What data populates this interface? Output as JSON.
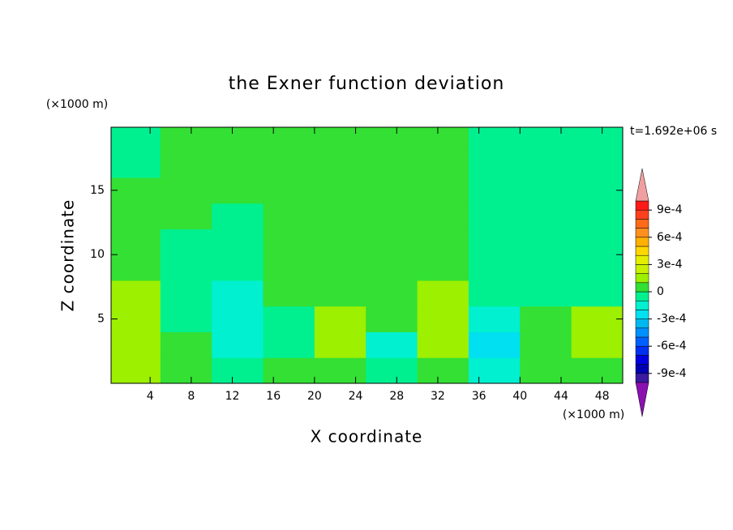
{
  "chart_data": {
    "type": "contour",
    "title": "the Exner function deviation",
    "y_unit": "(×1000 m)",
    "x_unit": "(×1000 m)",
    "time_label": "t=1.692e+06 s",
    "xlabel": "X coordinate",
    "ylabel": "Z coordinate",
    "xlim": [
      0.2,
      50
    ],
    "ylim": [
      0,
      19.9
    ],
    "xticks": [
      4,
      8,
      12,
      16,
      20,
      24,
      28,
      32,
      36,
      40,
      44,
      48
    ],
    "yticks": [
      5,
      10,
      15
    ],
    "x": [
      2.5,
      7.5,
      12.5,
      17.5,
      22.5,
      27.5,
      32.5,
      37.5,
      42.5,
      47.5
    ],
    "z": [
      1,
      3,
      5,
      7,
      9,
      11,
      13,
      15,
      17,
      19
    ],
    "values": [
      [
        0.00015,
        5e-05,
        -5e-05,
        5e-05,
        5e-05,
        -5e-05,
        5e-05,
        -0.00015,
        5e-05,
        5e-05
      ],
      [
        0.00015,
        5e-05,
        -0.00015,
        -5e-05,
        0.00015,
        -0.00015,
        0.00015,
        -0.00025,
        5e-05,
        0.00015
      ],
      [
        0.00015,
        -5e-05,
        -0.00015,
        -5e-05,
        0.00015,
        5e-05,
        0.00015,
        -0.00015,
        5e-05,
        0.00015
      ],
      [
        0.00015,
        -5e-05,
        -0.00015,
        5e-05,
        5e-05,
        5e-05,
        0.00015,
        -5e-05,
        -5e-05,
        -5e-05
      ],
      [
        5e-05,
        -5e-05,
        -5e-05,
        5e-05,
        5e-05,
        5e-05,
        5e-05,
        -5e-05,
        -5e-05,
        -5e-05
      ],
      [
        5e-05,
        -5e-05,
        -5e-05,
        5e-05,
        5e-05,
        5e-05,
        5e-05,
        -5e-05,
        -5e-05,
        -5e-05
      ],
      [
        5e-05,
        5e-05,
        -5e-05,
        5e-05,
        5e-05,
        5e-05,
        5e-05,
        -5e-05,
        -5e-05,
        -5e-05
      ],
      [
        5e-05,
        5e-05,
        5e-05,
        5e-05,
        5e-05,
        5e-05,
        5e-05,
        -5e-05,
        -5e-05,
        -5e-05
      ],
      [
        -5e-05,
        5e-05,
        5e-05,
        5e-05,
        5e-05,
        5e-05,
        5e-05,
        -5e-05,
        -5e-05,
        -5e-05
      ],
      [
        -5e-05,
        5e-05,
        5e-05,
        5e-05,
        5e-05,
        5e-05,
        5e-05,
        -5e-05,
        -5e-05,
        -5e-05
      ]
    ],
    "levels": [
      -0.001,
      -0.0009,
      -0.0008,
      -0.0007,
      -0.0006,
      -0.0005,
      -0.0004,
      -0.0003,
      -0.0002,
      -0.0001,
      0,
      0.0001,
      0.0002,
      0.0003,
      0.0004,
      0.0005,
      0.0006,
      0.0007,
      0.0008,
      0.0009,
      0.001
    ],
    "colors": [
      "#3a1aa0",
      "#0000b0",
      "#0000e0",
      "#0030f0",
      "#0060ff",
      "#0090ff",
      "#00b8f0",
      "#00e0f0",
      "#00f0d0",
      "#00f090",
      "#33e033",
      "#9cf000",
      "#c8f000",
      "#e6ee00",
      "#ffd700",
      "#ffb000",
      "#ff9020",
      "#ff6a1a",
      "#ff4020",
      "#ff1a1a"
    ],
    "under_color": "#8a10b0",
    "over_color": "#f0a0a0",
    "colorbar_ticks": [
      {
        "value": -0.0009,
        "label": "-9e-4"
      },
      {
        "value": -0.0006,
        "label": "-6e-4"
      },
      {
        "value": -0.0003,
        "label": "-3e-4"
      },
      0,
      {
        "value": 0.0003,
        "label": "3e-4"
      },
      {
        "value": 0.0006,
        "label": "6e-4"
      },
      {
        "value": 0.0009,
        "label": "9e-4"
      }
    ]
  }
}
